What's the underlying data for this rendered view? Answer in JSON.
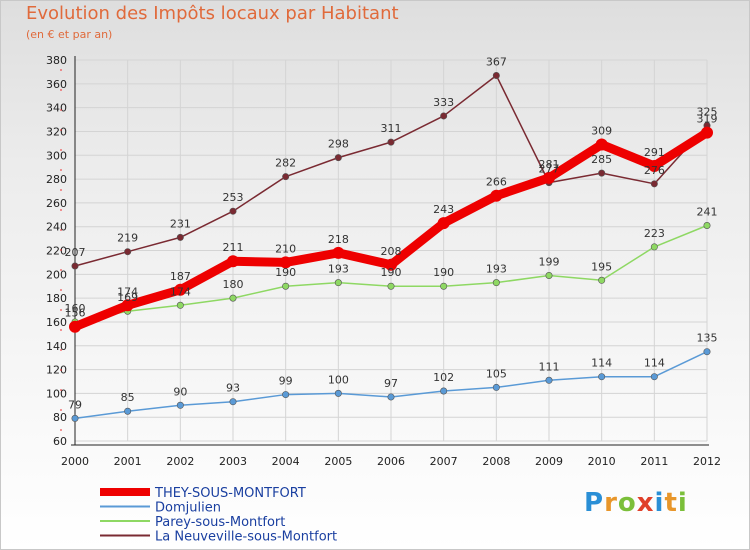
{
  "header": {
    "title": "Evolution des Impôts locaux par Habitant",
    "subtitle": "(en € et par an)"
  },
  "logo": {
    "text": "Proxiti"
  },
  "chart_data": {
    "type": "line",
    "title": "Evolution des Impôts locaux par Habitant",
    "subtitle": "(en € et par an)",
    "xlabel": "",
    "ylabel": "",
    "ylim": [
      60,
      380
    ],
    "yticks": [
      60,
      80,
      100,
      120,
      140,
      160,
      180,
      200,
      220,
      240,
      260,
      280,
      300,
      320,
      340,
      360,
      380
    ],
    "categories": [
      "2000",
      "2001",
      "2002",
      "2003",
      "2004",
      "2005",
      "2006",
      "2007",
      "2008",
      "2009",
      "2010",
      "2011",
      "2012"
    ],
    "grid": true,
    "legend_position": "bottom-left",
    "series": [
      {
        "name": "La Neuveville-sous-Montfort",
        "color": "#7a2a32",
        "values": [
          207,
          219,
          231,
          253,
          282,
          298,
          311,
          333,
          367,
          277,
          285,
          276,
          325
        ],
        "labels": [
          "207",
          "219",
          "231",
          "253",
          "282",
          "298",
          "311",
          "333",
          "367",
          "277",
          "285",
          "276",
          "325"
        ]
      },
      {
        "name": "Parey-sous-Montfort",
        "color": "#8ed863",
        "values": [
          160,
          169,
          174,
          180,
          190,
          193,
          190,
          190,
          193,
          199,
          195,
          223,
          241
        ],
        "labels": [
          "160",
          "169",
          "174",
          "180",
          "190",
          "193",
          "190",
          "190",
          "193",
          "199",
          "195",
          "223",
          "241"
        ]
      },
      {
        "name": "Domjulien",
        "color": "#5a9ad6",
        "values": [
          79,
          85,
          90,
          93,
          99,
          100,
          97,
          102,
          105,
          111,
          114,
          114,
          135
        ],
        "labels": [
          "79",
          "85",
          "90",
          "93",
          "99",
          "100",
          "97",
          "102",
          "105",
          "111",
          "114",
          "114",
          "135"
        ]
      },
      {
        "name": "THEY-SOUS-MONTFORT",
        "color": "#ee0000",
        "values": [
          156,
          174,
          187,
          211,
          210,
          218,
          208,
          243,
          266,
          281,
          309,
          291,
          319
        ],
        "labels": [
          "156",
          "174",
          "187",
          "211",
          "210",
          "218",
          "208",
          "243",
          "266",
          "281",
          "309",
          "291",
          "319"
        ]
      }
    ],
    "legend": [
      "THEY-SOUS-MONTFORT",
      "Domjulien",
      "Parey-sous-Montfort",
      "La Neuveville-sous-Montfort"
    ]
  }
}
